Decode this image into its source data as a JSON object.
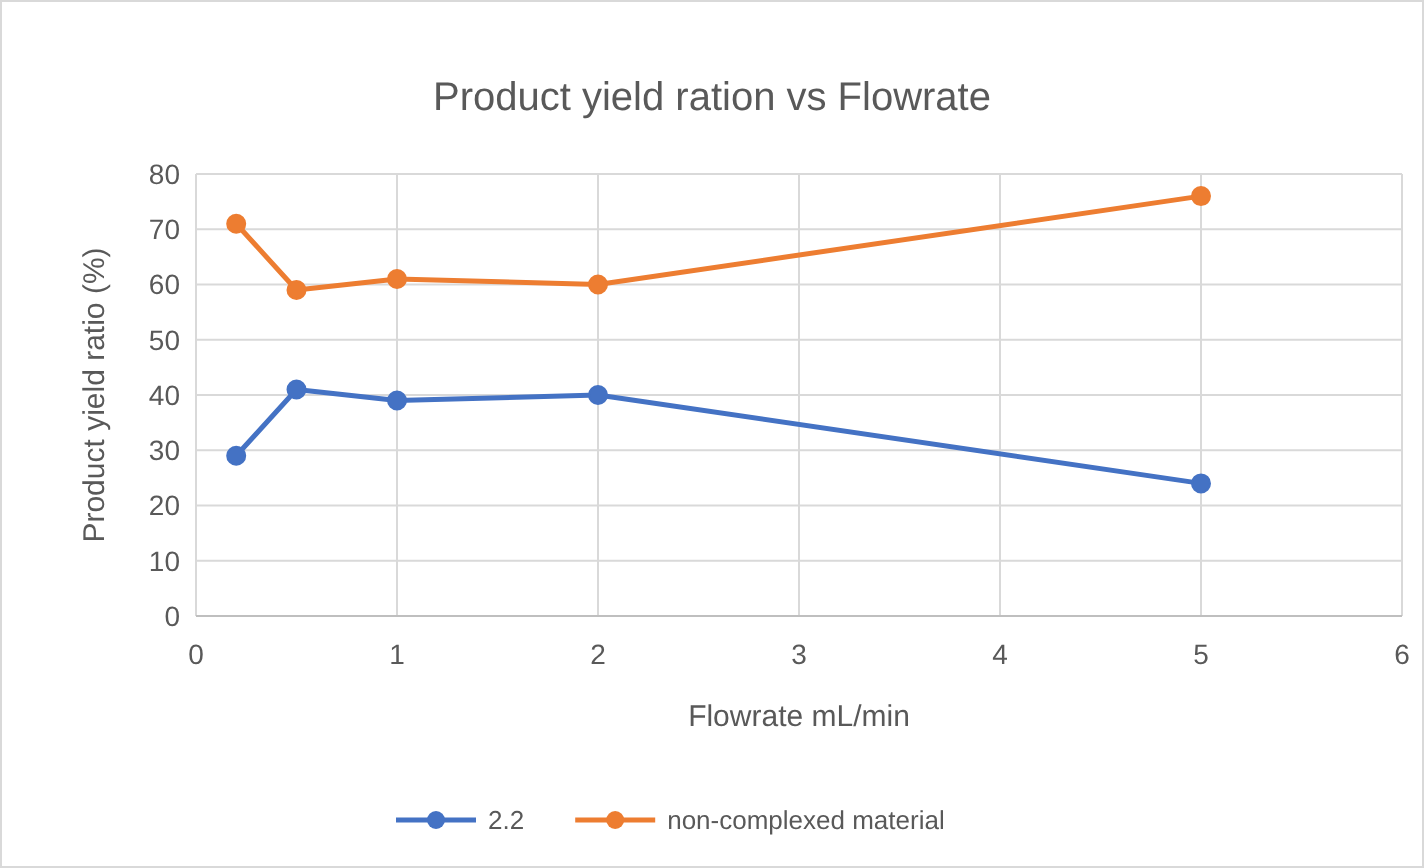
{
  "chart_data": {
    "type": "line",
    "title": "Product yield ration vs Flowrate",
    "xlabel": "Flowrate mL/min",
    "ylabel": "Product yield ratio (%)",
    "x": [
      0.2,
      0.5,
      1,
      2,
      5
    ],
    "series": [
      {
        "name": "2.2",
        "color": "#4472c4",
        "values": [
          29,
          41,
          39,
          40,
          24
        ]
      },
      {
        "name": "non-complexed material",
        "color": "#ed7d31",
        "values": [
          71,
          59,
          61,
          60,
          76
        ]
      }
    ],
    "xlim": [
      0,
      6
    ],
    "xticks": [
      0,
      1,
      2,
      3,
      4,
      5,
      6
    ],
    "ylim": [
      0,
      80
    ],
    "yticks": [
      0,
      10,
      20,
      30,
      40,
      50,
      60,
      70,
      80
    ],
    "grid": true,
    "legend": "bottom",
    "marker": "circle",
    "line_style": "solid"
  }
}
